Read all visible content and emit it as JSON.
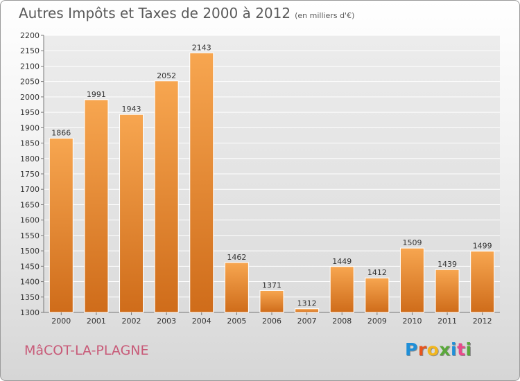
{
  "header": {
    "title": "Autres Impôts et Taxes de 2000 à 2012",
    "unit": "(en milliers d'€)"
  },
  "footer": {
    "place": "MâCOT-LA-PLAGNE",
    "logo": "Proxiti"
  },
  "colors": {
    "bar_top": "#f7a650",
    "bar_bottom": "#cf6c1a",
    "place_text": "#c85a78",
    "logo_letters": [
      "#1f8fd8",
      "#e8541c",
      "#f2b61c",
      "#59a83a",
      "#1f8fd8",
      "#e84a8a",
      "#59a83a"
    ]
  },
  "chart_data": {
    "type": "bar",
    "title": "Autres Impôts et Taxes de 2000 à 2012",
    "subtitle": "(en milliers d'€)",
    "categories": [
      "2000",
      "2001",
      "2002",
      "2003",
      "2004",
      "2005",
      "2006",
      "2007",
      "2008",
      "2009",
      "2010",
      "2011",
      "2012"
    ],
    "values": [
      1866,
      1991,
      1943,
      2052,
      2143,
      1462,
      1371,
      1312,
      1449,
      1412,
      1509,
      1439,
      1499
    ],
    "ylim": [
      1300,
      2200
    ],
    "yticks": [
      1300,
      1350,
      1400,
      1450,
      1500,
      1550,
      1600,
      1650,
      1700,
      1750,
      1800,
      1850,
      1900,
      1950,
      2000,
      2050,
      2100,
      2150,
      2200
    ],
    "grid": true,
    "xlabel": "",
    "ylabel": ""
  }
}
